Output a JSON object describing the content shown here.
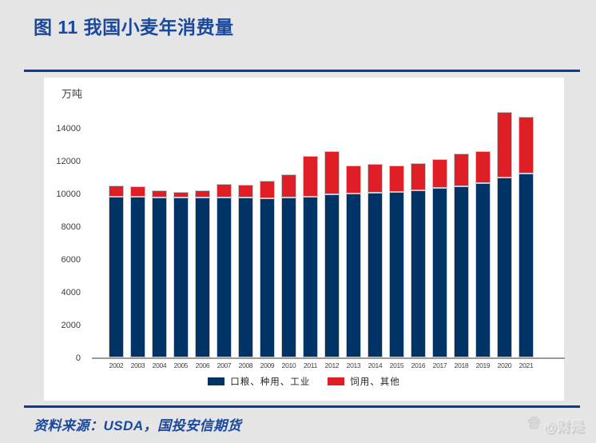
{
  "title": "图 11 我国小麦年消费量",
  "footer": {
    "source": "资料来源：USDA，国投安信期货",
    "watermark": "@财是"
  },
  "colors": {
    "accent_blue": "#19489d",
    "divider_blue": "#0e3a96",
    "bar_navy": "#003366",
    "bar_red": "#e01e25",
    "background": "#e5e5e5",
    "card": "#ffffff"
  },
  "chart_data": {
    "type": "bar",
    "stacked": true,
    "title": "我国小麦年消费量",
    "unit_label": "万吨",
    "xlabel": "",
    "ylabel": "万吨",
    "grid": false,
    "legend_position": "bottom",
    "ylim": [
      0,
      15200
    ],
    "yticks": [
      0,
      2000,
      4000,
      6000,
      8000,
      10000,
      12000,
      14000
    ],
    "categories": [
      "2002",
      "2003",
      "2004",
      "2005",
      "2006",
      "2007",
      "2008",
      "2009",
      "2010",
      "2011",
      "2012",
      "2013",
      "2014",
      "2015",
      "2016",
      "2017",
      "2018",
      "2019",
      "2020",
      "2021"
    ],
    "series": [
      {
        "name": "口粮、种用、工业",
        "color": "#003366",
        "values": [
          9830,
          9790,
          9740,
          9750,
          9740,
          9760,
          9740,
          9710,
          9760,
          9830,
          9950,
          10000,
          10060,
          10100,
          10200,
          10320,
          10450,
          10630,
          10960,
          11220
        ]
      },
      {
        "name": "饲用、其他",
        "color": "#e01e25",
        "values": [
          650,
          650,
          460,
          360,
          460,
          840,
          780,
          1070,
          1410,
          2480,
          2620,
          1710,
          1730,
          1610,
          1670,
          1760,
          2000,
          1960,
          4000,
          3460
        ]
      }
    ],
    "totals": [
      10480,
      10440,
      10200,
      10110,
      10200,
      10600,
      10520,
      10780,
      11170,
      12310,
      12570,
      11710,
      11790,
      11710,
      11870,
      12080,
      12450,
      12590,
      14960,
      14680
    ]
  }
}
